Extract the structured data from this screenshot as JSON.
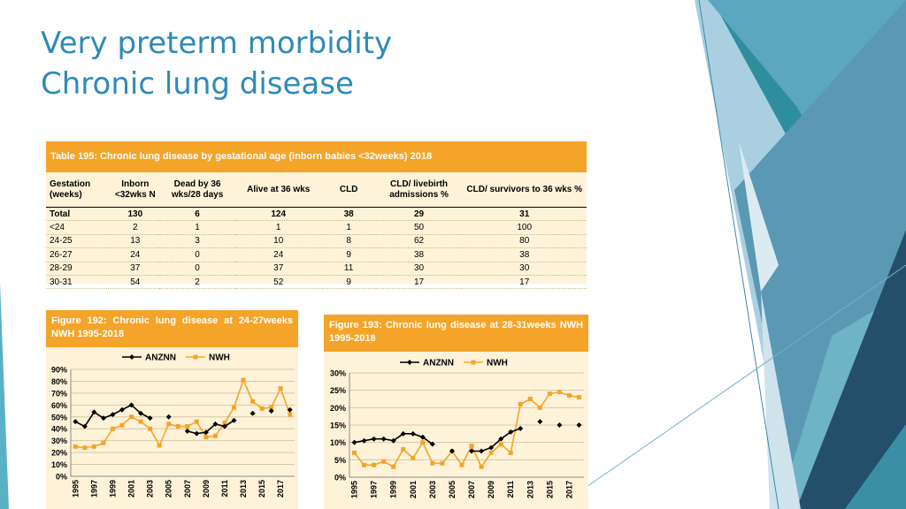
{
  "title": {
    "line1": "Very preterm morbidity",
    "line2": "Chronic lung disease"
  },
  "colors": {
    "title": "#2e8bb6",
    "accent_orange": "#f4a428",
    "panel_bg": "#fef3d9",
    "anznn": "#000000",
    "nwh": "#f4a428"
  },
  "table": {
    "caption": "Table 195: Chronic lung disease by gestational age (inborn babies <32weeks) 2018",
    "headers": [
      "Gestation (weeks)",
      "Inborn <32wks N",
      "Dead by 36 wks/28 days",
      "Alive at 36 wks",
      "CLD",
      "CLD/ livebirth admissions %",
      "CLD/ survivors to 36 wks %"
    ],
    "rows": [
      [
        "Total",
        "130",
        "6",
        "124",
        "38",
        "29",
        "31"
      ],
      [
        "<24",
        "2",
        "1",
        "1",
        "1",
        "50",
        "100"
      ],
      [
        "24-25",
        "13",
        "3",
        "10",
        "8",
        "62",
        "80"
      ],
      [
        "26-27",
        "24",
        "0",
        "24",
        "9",
        "38",
        "38"
      ],
      [
        "28-29",
        "37",
        "0",
        "37",
        "11",
        "30",
        "30"
      ],
      [
        "30-31",
        "54",
        "2",
        "52",
        "9",
        "17",
        "17"
      ]
    ]
  },
  "chart_data": [
    {
      "type": "line",
      "title": "Figure 192: Chronic lung disease at 24-27weeks NWH 1995-2018",
      "xlabel": "",
      "ylabel": "",
      "x": [
        1995,
        1996,
        1997,
        1998,
        1999,
        2000,
        2001,
        2002,
        2003,
        2004,
        2005,
        2006,
        2007,
        2008,
        2009,
        2010,
        2011,
        2012,
        2013,
        2014,
        2015,
        2016,
        2017,
        2018
      ],
      "x_tick_labels": [
        "1995",
        "1997",
        "1999",
        "2001",
        "2003",
        "2005",
        "2007",
        "2009",
        "2011",
        "2013",
        "2015",
        "2017"
      ],
      "y_tick_labels": [
        "0%",
        "10%",
        "20%",
        "30%",
        "40%",
        "50%",
        "60%",
        "70%",
        "80%",
        "90%"
      ],
      "ylim": [
        0,
        90
      ],
      "legend": [
        "ANZNN",
        "NWH"
      ],
      "legend_position": "top",
      "series": [
        {
          "name": "ANZNN",
          "values": [
            46,
            42,
            54,
            49,
            52,
            56,
            60,
            53,
            49,
            null,
            50,
            null,
            38,
            36,
            37,
            44,
            42,
            47,
            null,
            53,
            null,
            55,
            null,
            56
          ]
        },
        {
          "name": "NWH",
          "values": [
            25,
            24,
            25,
            28,
            40,
            43,
            50,
            46,
            40,
            26,
            44,
            42,
            42,
            46,
            33,
            34,
            45,
            58,
            81,
            63,
            57,
            58,
            74,
            52
          ]
        }
      ]
    },
    {
      "type": "line",
      "title": "Figure 193: Chronic lung disease at 28-31weeks NWH 1995-2018",
      "xlabel": "",
      "ylabel": "",
      "x": [
        1995,
        1996,
        1997,
        1998,
        1999,
        2000,
        2001,
        2002,
        2003,
        2004,
        2005,
        2006,
        2007,
        2008,
        2009,
        2010,
        2011,
        2012,
        2013,
        2014,
        2015,
        2016,
        2017,
        2018
      ],
      "x_tick_labels": [
        "1995",
        "1997",
        "1999",
        "2001",
        "2003",
        "2005",
        "2007",
        "2009",
        "2011",
        "2013",
        "2015",
        "2017"
      ],
      "y_tick_labels": [
        "0%",
        "5%",
        "10%",
        "15%",
        "20%",
        "25%",
        "30%"
      ],
      "ylim": [
        0,
        30
      ],
      "legend": [
        "ANZNN",
        "NWH"
      ],
      "legend_position": "top",
      "series": [
        {
          "name": "ANZNN",
          "values": [
            10,
            10.5,
            11,
            11,
            10.5,
            12.5,
            12.5,
            11.5,
            9.5,
            null,
            7.5,
            null,
            7.5,
            7.5,
            8.5,
            11,
            13,
            14,
            null,
            16,
            null,
            15,
            null,
            15
          ]
        },
        {
          "name": "NWH",
          "values": [
            7,
            3.5,
            3.5,
            4.5,
            3,
            8,
            5.5,
            10,
            4,
            4,
            7.5,
            3.5,
            9,
            3,
            7,
            9.5,
            7,
            21,
            22.5,
            20,
            24,
            24.5,
            23.5,
            23
          ]
        }
      ]
    }
  ]
}
